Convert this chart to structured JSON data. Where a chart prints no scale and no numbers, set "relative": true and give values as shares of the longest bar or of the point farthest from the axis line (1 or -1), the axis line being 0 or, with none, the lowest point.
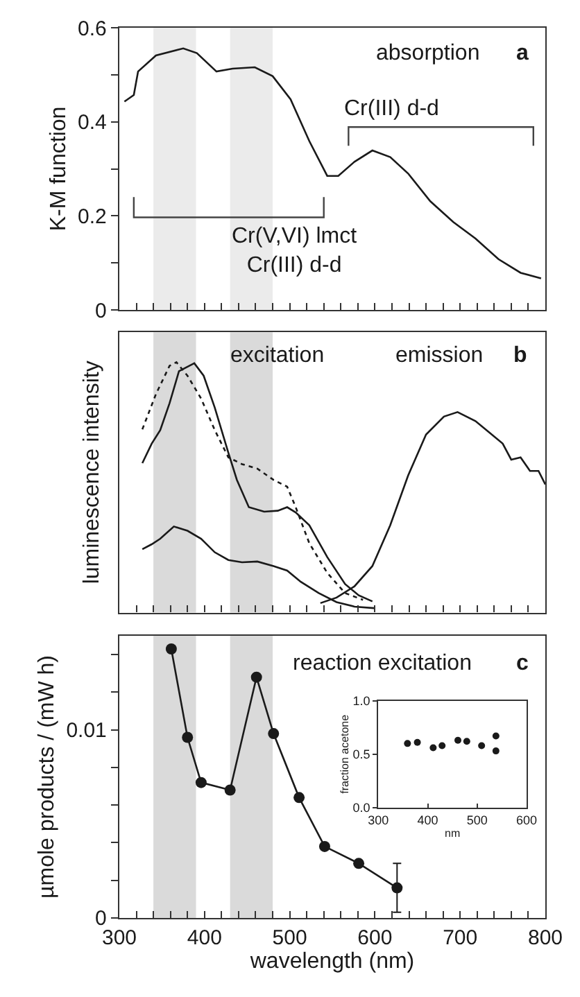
{
  "chart_data": [
    {
      "type": "line",
      "ylabel": "K-M function",
      "xlim": [
        300,
        800
      ],
      "ylim": [
        0,
        0.6
      ],
      "tick_labels": "y",
      "xticks": [
        300,
        {
          "value": 320,
          "label": null
        },
        {
          "value": 340,
          "label": null
        },
        {
          "value": 360,
          "label": null
        },
        {
          "value": 380,
          "label": null
        },
        400,
        {
          "value": 420,
          "label": null
        },
        {
          "value": 440,
          "label": null
        },
        {
          "value": 460,
          "label": null
        },
        {
          "value": 480,
          "label": null
        },
        500,
        {
          "value": 520,
          "label": null
        },
        {
          "value": 540,
          "label": null
        },
        {
          "value": 560,
          "label": null
        },
        {
          "value": 580,
          "label": null
        },
        600,
        {
          "value": 620,
          "label": null
        },
        {
          "value": 640,
          "label": null
        },
        {
          "value": 660,
          "label": null
        },
        {
          "value": 680,
          "label": null
        },
        700,
        {
          "value": 720,
          "label": null
        },
        {
          "value": 740,
          "label": null
        },
        {
          "value": 760,
          "label": null
        },
        {
          "value": 780,
          "label": null
        },
        800
      ],
      "yticks": [
        0,
        {
          "value": 0.1,
          "label": null
        },
        0.2,
        {
          "value": 0.3,
          "label": null
        },
        0.4,
        {
          "value": 0.5,
          "label": null
        },
        0.6
      ],
      "bands": [
        {
          "axis": "x",
          "from": 340,
          "to": 390,
          "color": "#ebebeb"
        },
        {
          "axis": "x",
          "from": 430,
          "to": 480,
          "color": "#ebebeb"
        }
      ],
      "series": [
        {
          "color": "#1a1a1a",
          "x": [
            306,
            317,
            322,
            343,
            375,
            391,
            414,
            433,
            459,
            480,
            501,
            523,
            544,
            557,
            576,
            597,
            618,
            639,
            665,
            692,
            718,
            745,
            771,
            795
          ],
          "values": [
            0.443,
            0.457,
            0.507,
            0.541,
            0.556,
            0.546,
            0.507,
            0.513,
            0.516,
            0.497,
            0.448,
            0.359,
            0.285,
            0.285,
            0.315,
            0.339,
            0.325,
            0.29,
            0.231,
            0.187,
            0.152,
            0.108,
            0.079,
            0.067
          ]
        }
      ],
      "annotations": [
        "absorption",
        "a",
        "Cr(V,VI) lmct\nCr(III) d-d",
        "Cr(III) d-d"
      ]
    },
    {
      "type": "line",
      "relative": true,
      "ylabel": "luminescence intensity",
      "xlim": [
        300,
        800
      ],
      "tick_labels": false,
      "xticks": [
        300,
        {
          "value": 320,
          "label": null
        },
        {
          "value": 340,
          "label": null
        },
        {
          "value": 360,
          "label": null
        },
        {
          "value": 380,
          "label": null
        },
        400,
        {
          "value": 420,
          "label": null
        },
        {
          "value": 440,
          "label": null
        },
        {
          "value": 460,
          "label": null
        },
        {
          "value": 480,
          "label": null
        },
        500,
        {
          "value": 520,
          "label": null
        },
        {
          "value": 540,
          "label": null
        },
        {
          "value": 560,
          "label": null
        },
        {
          "value": 580,
          "label": null
        },
        600,
        {
          "value": 620,
          "label": null
        },
        {
          "value": 640,
          "label": null
        },
        {
          "value": 660,
          "label": null
        },
        {
          "value": 680,
          "label": null
        },
        700,
        {
          "value": 720,
          "label": null
        },
        {
          "value": 740,
          "label": null
        },
        {
          "value": 760,
          "label": null
        },
        {
          "value": 780,
          "label": null
        },
        800
      ],
      "bands": [
        {
          "axis": "x",
          "from": 340,
          "to": 390,
          "color": "#dadada"
        },
        {
          "axis": "x",
          "from": 430,
          "to": 480,
          "color": "#dadada"
        }
      ],
      "series": [
        {
          "color": "#1a1a1a",
          "line_style": "solid",
          "x": [
            327,
            338,
            348,
            359,
            370,
            388,
            399,
            412,
            428,
            438,
            452,
            470,
            486,
            497,
            507,
            523,
            544,
            565,
            581,
            597
          ],
          "values": [
            0.597,
            0.675,
            0.729,
            0.837,
            0.964,
            0.996,
            0.946,
            0.819,
            0.638,
            0.53,
            0.421,
            0.403,
            0.407,
            0.421,
            0.4,
            0.349,
            0.222,
            0.114,
            0.069,
            0.045
          ]
        },
        {
          "color": "#1a1a1a",
          "line_style": "dotted",
          "x": [
            327,
            343,
            359,
            367,
            380,
            396,
            412,
            428,
            444,
            462,
            481,
            497,
            507,
            523,
            544,
            565,
            586
          ],
          "values": [
            0.732,
            0.873,
            0.986,
            1.0,
            0.946,
            0.855,
            0.729,
            0.62,
            0.593,
            0.575,
            0.53,
            0.503,
            0.421,
            0.277,
            0.159,
            0.078,
            0.051
          ]
        },
        {
          "color": "#1a1a1a",
          "line_style": "solid",
          "x": [
            327,
            338,
            348,
            364,
            380,
            396,
            412,
            428,
            444,
            462,
            481,
            497,
            513,
            534,
            555,
            576,
            599
          ],
          "values": [
            0.253,
            0.273,
            0.295,
            0.344,
            0.327,
            0.295,
            0.241,
            0.21,
            0.201,
            0.204,
            0.186,
            0.168,
            0.123,
            0.078,
            0.042,
            0.024,
            0.018
          ]
        },
        {
          "color": "#1a1a1a",
          "line_style": "solid",
          "x": [
            536,
            555,
            576,
            597,
            618,
            639,
            660,
            681,
            697,
            718,
            734,
            750,
            760,
            771,
            782,
            792,
            800
          ],
          "values": [
            0.038,
            0.06,
            0.105,
            0.186,
            0.349,
            0.548,
            0.711,
            0.783,
            0.801,
            0.765,
            0.72,
            0.675,
            0.611,
            0.62,
            0.566,
            0.566,
            0.512
          ]
        }
      ],
      "annotations": [
        "excitation",
        "emission",
        "b"
      ]
    },
    {
      "type": "line",
      "marker": "circle",
      "xlabel": "wavelength (nm)",
      "ylabel": "µmole products / (mW h)",
      "xlim": [
        300,
        800
      ],
      "ylim": [
        0,
        0.015
      ],
      "xticks": [
        300,
        {
          "value": 320,
          "label": null
        },
        {
          "value": 340,
          "label": null
        },
        {
          "value": 360,
          "label": null
        },
        {
          "value": 380,
          "label": null
        },
        400,
        {
          "value": 420,
          "label": null
        },
        {
          "value": 440,
          "label": null
        },
        {
          "value": 460,
          "label": null
        },
        {
          "value": 480,
          "label": null
        },
        500,
        {
          "value": 520,
          "label": null
        },
        {
          "value": 540,
          "label": null
        },
        {
          "value": 560,
          "label": null
        },
        {
          "value": 580,
          "label": null
        },
        600,
        {
          "value": 620,
          "label": null
        },
        {
          "value": 640,
          "label": null
        },
        {
          "value": 660,
          "label": null
        },
        {
          "value": 680,
          "label": null
        },
        700,
        {
          "value": 720,
          "label": null
        },
        {
          "value": 740,
          "label": null
        },
        {
          "value": 760,
          "label": null
        },
        {
          "value": 780,
          "label": null
        },
        800
      ],
      "yticks": [
        0,
        {
          "value": 0.002,
          "label": null
        },
        {
          "value": 0.004,
          "label": null
        },
        {
          "value": 0.006,
          "label": null
        },
        {
          "value": 0.008,
          "label": null
        },
        0.01,
        {
          "value": 0.012,
          "label": null
        },
        {
          "value": 0.014,
          "label": null
        }
      ],
      "bands": [
        {
          "axis": "x",
          "from": 340,
          "to": 390,
          "color": "#dadada"
        },
        {
          "axis": "x",
          "from": 430,
          "to": 480,
          "color": "#dadada"
        }
      ],
      "series": [
        {
          "color": "#1a1a1a",
          "x": [
            361,
            380,
            396,
            430,
            461,
            481,
            511,
            541,
            581,
            626
          ],
          "values": [
            0.0143,
            0.0096,
            0.0072,
            0.0068,
            0.0128,
            0.0098,
            0.0064,
            0.0038,
            0.0029,
            0.0016
          ],
          "errors": [
            null,
            null,
            null,
            null,
            null,
            null,
            null,
            null,
            null,
            0.0013
          ]
        }
      ],
      "annotations": [
        "reaction excitation",
        "c"
      ]
    },
    {
      "type": "scatter",
      "marker": "circle",
      "xlabel": "nm",
      "ylabel": "fraction acetone",
      "xlim": [
        300,
        600
      ],
      "ylim": [
        0,
        1.0
      ],
      "xticks": [
        300,
        400,
        500,
        600
      ],
      "yticks": [
        {
          "value": 0,
          "label": "0.0"
        },
        {
          "value": 0.5,
          "label": "0.5"
        },
        {
          "value": 1.0,
          "label": "1.0"
        }
      ],
      "series": [
        {
          "color": "#1a1a1a",
          "x": [
            359,
            379,
            411,
            429,
            461,
            479,
            509,
            538,
            538
          ],
          "values": [
            0.6,
            0.61,
            0.56,
            0.58,
            0.63,
            0.62,
            0.58,
            0.67,
            0.53
          ]
        }
      ]
    }
  ]
}
